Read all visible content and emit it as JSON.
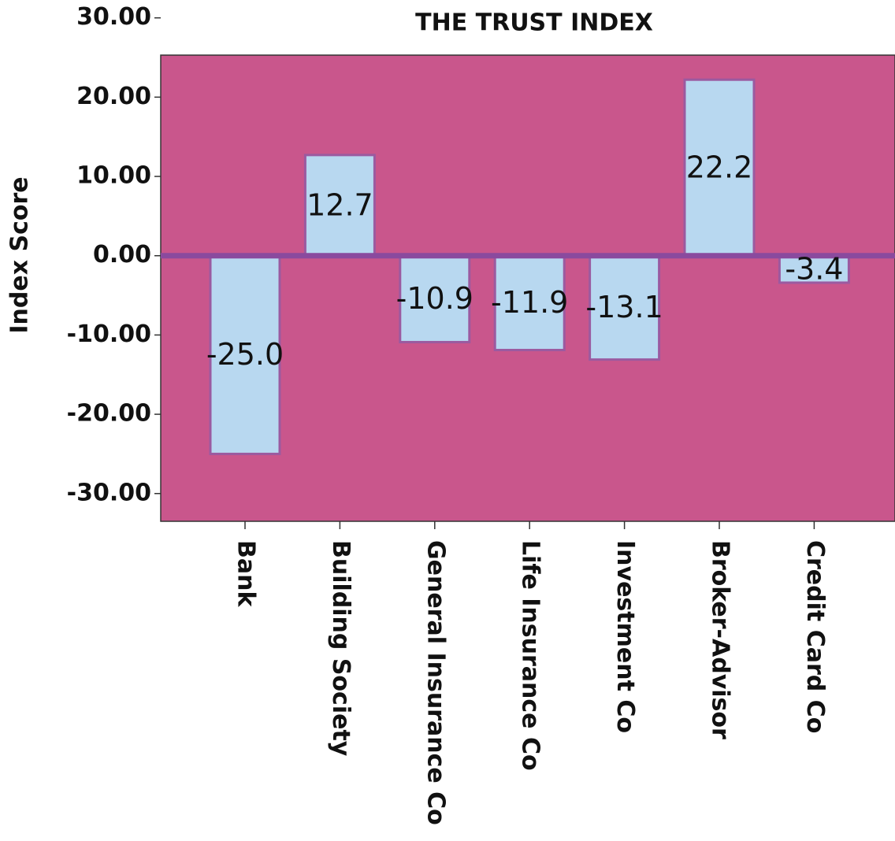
{
  "chart_data": {
    "type": "bar",
    "title": "THE TRUST INDEX",
    "y_label": "Index Score",
    "categories": [
      "Bank",
      "Building Society",
      "General Insurance Co",
      "Life Insurance Co",
      "Investment Co",
      "Broker-Advisor",
      "Credit Card Co"
    ],
    "values": [
      -25.0,
      12.7,
      -10.9,
      -11.9,
      -13.1,
      22.2,
      -3.4
    ],
    "value_labels": [
      "-25.0",
      "12.7",
      "-10.9",
      "-11.9",
      "-13.1",
      "22.2",
      "-3.4"
    ],
    "color": "#b8d8f0",
    "background": "#c9568c",
    "ylim": [
      -33.5,
      25.3
    ],
    "yticks": [
      {
        "value": -30,
        "label": "-30.00"
      },
      {
        "value": -20,
        "label": "-20.00"
      },
      {
        "value": -10,
        "label": "-10.00"
      },
      {
        "value": 0,
        "label": "0.00"
      },
      {
        "value": 10,
        "label": "10.00"
      },
      {
        "value": 20,
        "label": "20.00"
      },
      {
        "value": 30,
        "label": "30.00"
      }
    ]
  }
}
